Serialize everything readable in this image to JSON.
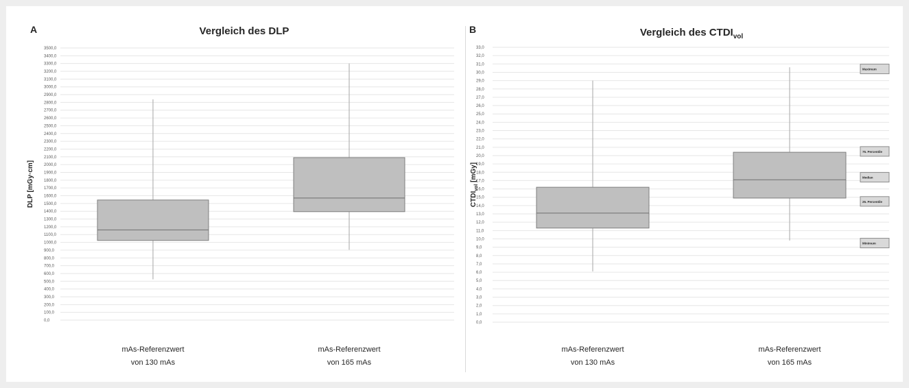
{
  "colors": {
    "box_fill": "#bfbfbf",
    "box_stroke": "#7f7f7f",
    "whisker": "#a6a6a6",
    "grid": "#e6e6e6",
    "text": "#262626"
  },
  "chart_data": [
    {
      "type": "boxplot",
      "panel_label": "A",
      "title": "Vergleich des DLP",
      "title_sub": "",
      "ylabel": "DLP [mGy·cm]",
      "ylabel_sub": "",
      "ylabel_suffix": "",
      "ylim": [
        0,
        3500
      ],
      "ytick_step": 100,
      "ytick_decimals": 1,
      "grid": true,
      "categories": [
        {
          "line1": "mAs-Referenzwert",
          "line2": "von 130 mAs",
          "min": 525,
          "q1": 1025,
          "median": 1160,
          "q3": 1545,
          "max": 2840
        },
        {
          "line1": "mAs-Referenzwert",
          "line2": "von 165 mAs",
          "min": 905,
          "q1": 1395,
          "median": 1570,
          "q3": 2090,
          "max": 3300
        }
      ],
      "legend": []
    },
    {
      "type": "boxplot",
      "panel_label": "B",
      "title": "Vergleich des CTDI",
      "title_sub": "vol",
      "ylabel": "CTDI",
      "ylabel_sub": "vol",
      "ylabel_suffix": " [mGy]",
      "ylim": [
        0,
        33
      ],
      "ytick_step": 1,
      "ytick_decimals": 1,
      "grid": true,
      "categories": [
        {
          "line1": "mAs-Referenzwert",
          "line2": "von 130 mAs",
          "min": 6.1,
          "q1": 11.3,
          "median": 13.1,
          "q3": 16.2,
          "max": 29.0
        },
        {
          "line1": "mAs-Referenzwert",
          "line2": "von 165 mAs",
          "min": 9.8,
          "q1": 14.9,
          "median": 17.1,
          "q3": 20.4,
          "max": 30.6
        }
      ],
      "legend": [
        {
          "label": "Maximum",
          "value": 30.4
        },
        {
          "label": "75. Percentile",
          "value": 20.5
        },
        {
          "label": "Median",
          "value": 17.4
        },
        {
          "label": "25. Percentile",
          "value": 14.5
        },
        {
          "label": "Minimum",
          "value": 9.5
        }
      ]
    }
  ]
}
